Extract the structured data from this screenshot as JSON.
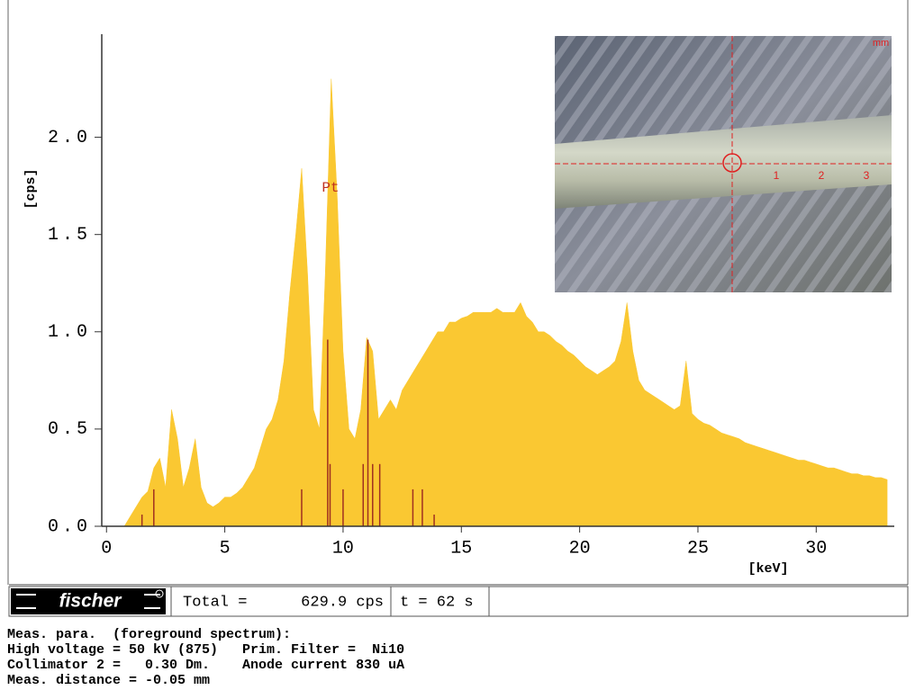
{
  "chart_data": {
    "type": "area",
    "y_label": "[cps]",
    "x_label": "[keV]",
    "annotation": {
      "text": "Pt",
      "x": 9.47,
      "y": 1.74
    },
    "xlim": [
      -0.2,
      33.3
    ],
    "ylim": [
      0,
      2.53
    ],
    "xticks": [
      0,
      5,
      10,
      15,
      20,
      25,
      30
    ],
    "yticks": [
      {
        "value": 0,
        "label": "0.0"
      },
      {
        "value": 0.5,
        "label": "0.5"
      },
      {
        "value": 1,
        "label": "1.0"
      },
      {
        "value": 1.5,
        "label": "1.5"
      },
      {
        "value": 2,
        "label": "2.0"
      }
    ],
    "x": [
      0.75,
      1,
      1.25,
      1.5,
      1.75,
      2,
      2.25,
      2.5,
      2.75,
      3,
      3.25,
      3.5,
      3.75,
      4,
      4.25,
      4.5,
      4.75,
      5,
      5.25,
      5.5,
      5.75,
      6,
      6.25,
      6.5,
      6.75,
      7,
      7.25,
      7.5,
      7.75,
      8,
      8.25,
      8.5,
      8.75,
      9,
      9.25,
      9.5,
      9.75,
      10,
      10.25,
      10.5,
      10.75,
      11,
      11.25,
      11.5,
      11.75,
      12,
      12.25,
      12.5,
      12.75,
      13,
      13.25,
      13.5,
      13.75,
      14,
      14.25,
      14.5,
      14.75,
      15,
      15.25,
      15.5,
      15.75,
      16,
      16.25,
      16.5,
      16.75,
      17,
      17.25,
      17.5,
      17.75,
      18,
      18.25,
      18.5,
      18.75,
      19,
      19.25,
      19.5,
      19.75,
      20,
      20.25,
      20.5,
      20.75,
      21,
      21.25,
      21.5,
      21.75,
      22,
      22.25,
      22.5,
      22.75,
      23,
      23.25,
      23.5,
      23.75,
      24,
      24.25,
      24.5,
      24.75,
      25,
      25.25,
      25.5,
      25.75,
      26,
      26.25,
      26.5,
      26.75,
      27,
      27.25,
      27.5,
      27.75,
      28,
      28.25,
      28.5,
      28.75,
      29,
      29.25,
      29.5,
      29.75,
      30,
      30.25,
      30.5,
      30.75,
      31,
      31.25,
      31.5,
      31.75,
      32,
      32.25,
      32.5,
      32.75,
      33
    ],
    "series": [
      {
        "color": "#fac832",
        "values": [
          0,
          0.05,
          0.1,
          0.15,
          0.18,
          0.3,
          0.35,
          0.2,
          0.6,
          0.45,
          0.2,
          0.3,
          0.45,
          0.2,
          0.12,
          0.1,
          0.12,
          0.15,
          0.15,
          0.17,
          0.2,
          0.25,
          0.3,
          0.4,
          0.5,
          0.55,
          0.65,
          0.85,
          1.2,
          1.5,
          1.84,
          1.3,
          0.6,
          0.5,
          1.3,
          2.3,
          1.7,
          0.9,
          0.5,
          0.45,
          0.6,
          0.97,
          0.9,
          0.55,
          0.6,
          0.65,
          0.6,
          0.7,
          0.75,
          0.8,
          0.85,
          0.9,
          0.95,
          1,
          1,
          1.05,
          1.05,
          1.07,
          1.08,
          1.1,
          1.1,
          1.1,
          1.1,
          1.12,
          1.1,
          1.1,
          1.1,
          1.15,
          1.08,
          1.05,
          1,
          1,
          0.98,
          0.95,
          0.93,
          0.9,
          0.88,
          0.85,
          0.82,
          0.8,
          0.78,
          0.8,
          0.82,
          0.85,
          0.95,
          1.15,
          0.9,
          0.75,
          0.7,
          0.68,
          0.66,
          0.64,
          0.62,
          0.6,
          0.62,
          0.85,
          0.58,
          0.55,
          0.53,
          0.52,
          0.5,
          0.48,
          0.47,
          0.46,
          0.45,
          0.43,
          0.42,
          0.41,
          0.4,
          0.39,
          0.38,
          0.37,
          0.36,
          0.35,
          0.34,
          0.34,
          0.33,
          0.32,
          0.31,
          0.3,
          0.3,
          0.29,
          0.28,
          0.27,
          0.27,
          0.26,
          0.26,
          0.25,
          0.25,
          0.24
        ]
      }
    ],
    "lines": {
      "color": "#a03020",
      "x": [
        1.5,
        2,
        8.25,
        9.35,
        9.45,
        10,
        10.85,
        11.05,
        11.25,
        11.55,
        12.95,
        13.35,
        13.85
      ],
      "values": [
        0.06,
        0.19,
        0.19,
        0.96,
        0.32,
        0.19,
        0.32,
        0.96,
        0.32,
        0.32,
        0.19,
        0.19,
        0.06
      ]
    }
  },
  "inset": {
    "unit": "mm",
    "scale_labels": [
      "1",
      "2",
      "3"
    ]
  },
  "status_bar": {
    "brand": "fischer",
    "total_label": "Total =",
    "total_value": "629.9 cps",
    "time": "t = 62 s"
  },
  "parameters": [
    "Meas. para.  (foreground spectrum):",
    "High voltage = 50 kV (875)   Prim. Filter =  Ni10",
    "Collimator 2 =   0.30 Dm.    Anode current 830 uA",
    "Meas. distance = -0.05 mm"
  ]
}
